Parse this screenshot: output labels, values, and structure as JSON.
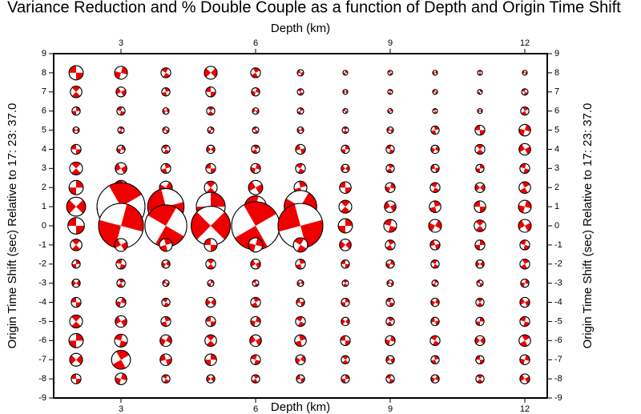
{
  "chart_data": {
    "type": "beachball-grid",
    "title": "Variance Reduction and % Double Couple as a function of Depth and Origin Time Shift",
    "x_label": "Depth (km)",
    "y_label": "Origin Time Shift (sec) Relative to 17: 23: 37.0",
    "x": [
      2,
      3,
      4,
      5,
      6,
      7,
      8,
      9,
      10,
      11,
      12
    ],
    "y": [
      8,
      7,
      6,
      5,
      4,
      3,
      2,
      1,
      0,
      -1,
      -2,
      -3,
      -4,
      -5,
      -6,
      -7,
      -8
    ],
    "values": [
      [
        60,
        58,
        53,
        58,
        53,
        46,
        42,
        42,
        42,
        42,
        42
      ],
      [
        56,
        53,
        50,
        53,
        50,
        46,
        42,
        42,
        42,
        42,
        46
      ],
      [
        50,
        50,
        46,
        50,
        46,
        46,
        42,
        42,
        42,
        42,
        50
      ],
      [
        46,
        46,
        46,
        46,
        46,
        46,
        46,
        46,
        50,
        53,
        56
      ],
      [
        53,
        50,
        50,
        50,
        50,
        53,
        50,
        50,
        50,
        53,
        56
      ],
      [
        58,
        56,
        53,
        53,
        53,
        53,
        50,
        50,
        50,
        50,
        53
      ],
      [
        60,
        60,
        58,
        58,
        60,
        58,
        56,
        53,
        53,
        53,
        56
      ],
      [
        66,
        90,
        82,
        76,
        69,
        79,
        58,
        56,
        56,
        56,
        58
      ],
      [
        63,
        88,
        86,
        84,
        90,
        88,
        60,
        58,
        58,
        56,
        58
      ],
      [
        56,
        58,
        58,
        58,
        60,
        60,
        56,
        53,
        53,
        53,
        53
      ],
      [
        50,
        53,
        50,
        53,
        53,
        53,
        50,
        50,
        50,
        50,
        53
      ],
      [
        50,
        50,
        46,
        46,
        46,
        46,
        46,
        46,
        46,
        46,
        50
      ],
      [
        53,
        53,
        50,
        53,
        53,
        50,
        50,
        50,
        50,
        50,
        53
      ],
      [
        58,
        56,
        53,
        53,
        53,
        53,
        50,
        50,
        50,
        50,
        53
      ],
      [
        60,
        58,
        56,
        56,
        56,
        56,
        53,
        53,
        53,
        53,
        56
      ],
      [
        58,
        66,
        56,
        56,
        53,
        53,
        50,
        50,
        50,
        50,
        53
      ],
      [
        53,
        56,
        50,
        50,
        50,
        50,
        50,
        50,
        50,
        50,
        53
      ]
    ],
    "color": "#ee0000",
    "xlim": [
      1.5,
      12.5
    ],
    "xticks": [
      3,
      6,
      9,
      12
    ],
    "ylim": [
      -9,
      9
    ],
    "yticks": [
      -9,
      -8,
      -7,
      -6,
      -5,
      -4,
      -3,
      -2,
      -1,
      0,
      1,
      2,
      3,
      4,
      5,
      6,
      7,
      8,
      9
    ]
  }
}
